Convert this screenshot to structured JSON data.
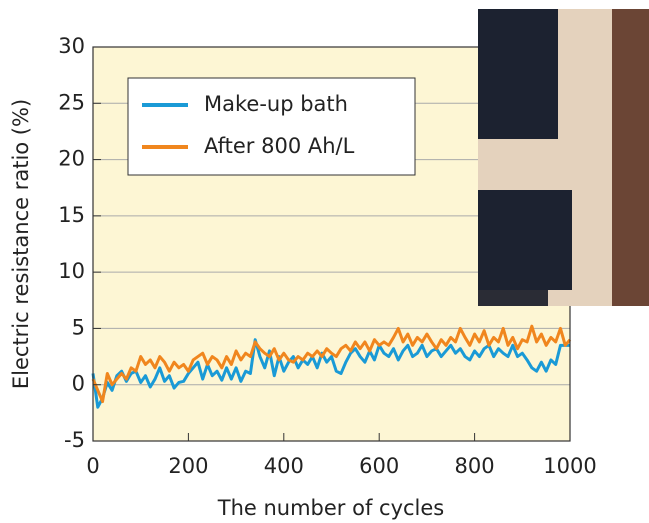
{
  "chart_data": {
    "type": "line",
    "xlabel": "The number of cycles",
    "ylabel": "Electric resistance ratio (%)",
    "xlim": [
      0,
      1000
    ],
    "xticks": [
      0,
      200,
      400,
      600,
      800,
      1000
    ],
    "ylim": [
      -5,
      30
    ],
    "yticks": [
      -5,
      0,
      5,
      10,
      15,
      20,
      25,
      30
    ],
    "grid": true,
    "legend": "upper left",
    "x": [
      0,
      10,
      20,
      30,
      40,
      50,
      60,
      70,
      80,
      90,
      100,
      110,
      120,
      130,
      140,
      150,
      160,
      170,
      180,
      190,
      200,
      210,
      220,
      230,
      240,
      250,
      260,
      270,
      280,
      290,
      300,
      310,
      320,
      330,
      340,
      350,
      360,
      370,
      380,
      390,
      400,
      410,
      420,
      430,
      440,
      450,
      460,
      470,
      480,
      490,
      500,
      510,
      520,
      530,
      540,
      550,
      560,
      570,
      580,
      590,
      600,
      610,
      620,
      630,
      640,
      650,
      660,
      670,
      680,
      690,
      700,
      710,
      720,
      730,
      740,
      750,
      760,
      770,
      780,
      790,
      800,
      810,
      820,
      830,
      840,
      850,
      860,
      870,
      880,
      890,
      900,
      910,
      920,
      930,
      940,
      950,
      960,
      970,
      980,
      990,
      1000
    ],
    "series": [
      {
        "name": "Make-up bath",
        "color": "#1a9ad6",
        "values": [
          1,
          -2,
          -1.2,
          0.2,
          -0.5,
          0.8,
          1.2,
          0.3,
          1,
          1.2,
          0.2,
          0.8,
          -0.2,
          0.5,
          1.5,
          0.3,
          0.8,
          -0.3,
          0.2,
          0.3,
          1,
          1.5,
          2,
          0.5,
          1.8,
          0.8,
          1.2,
          0.4,
          1.5,
          0.5,
          1.5,
          0.3,
          1.2,
          1,
          4,
          2.5,
          1.5,
          3,
          0.8,
          2.5,
          1.2,
          2,
          2.5,
          1.5,
          2.2,
          1.8,
          2.5,
          1.5,
          2.8,
          2,
          2.5,
          1.2,
          1,
          2,
          2.8,
          3.2,
          2.5,
          2,
          3,
          2.2,
          3.5,
          2.8,
          2.5,
          3.2,
          2.2,
          3,
          3.5,
          2.5,
          2.8,
          3.5,
          2.5,
          3,
          3.2,
          2.5,
          3,
          3.5,
          2.8,
          3.2,
          2.5,
          2.2,
          3,
          2.5,
          3.2,
          3.5,
          2.5,
          3.2,
          2.8,
          2.5,
          3.5,
          2.5,
          2.8,
          2.2,
          1.5,
          1.2,
          2,
          1.2,
          2.2,
          1.8,
          3.5,
          3.5,
          3.5
        ]
      },
      {
        "name": "After 800 Ah/L",
        "color": "#f0861e",
        "values": [
          0.5,
          -0.5,
          -1.5,
          1,
          0,
          0.5,
          1,
          0.5,
          1.5,
          1.2,
          2.5,
          1.8,
          2.2,
          1.5,
          2.5,
          2,
          1.2,
          2,
          1.5,
          1.8,
          1.2,
          2.2,
          2.5,
          2.8,
          1.8,
          2.5,
          2.2,
          1.5,
          2.5,
          1.8,
          3,
          2.2,
          2.8,
          2.5,
          3.8,
          3.2,
          2.8,
          2.5,
          3.2,
          2.2,
          2.8,
          2.2,
          2,
          2.5,
          2.2,
          2.8,
          2.5,
          3,
          2.5,
          3.2,
          2.8,
          2.5,
          3.2,
          3.5,
          3,
          3.8,
          3.2,
          3.8,
          3,
          4,
          3.5,
          3.8,
          3.5,
          4.2,
          5,
          3.8,
          4.5,
          3.5,
          4.2,
          3.8,
          4.5,
          3.8,
          3.2,
          4,
          3.5,
          4.2,
          3.8,
          5,
          4.2,
          3.5,
          4.5,
          3.8,
          4.8,
          3.5,
          4.2,
          3.8,
          5,
          3.5,
          4.2,
          3.2,
          4,
          3.8,
          5.2,
          3.8,
          4.5,
          3.5,
          4.2,
          3.8,
          5,
          3.5,
          4
        ]
      }
    ]
  }
}
